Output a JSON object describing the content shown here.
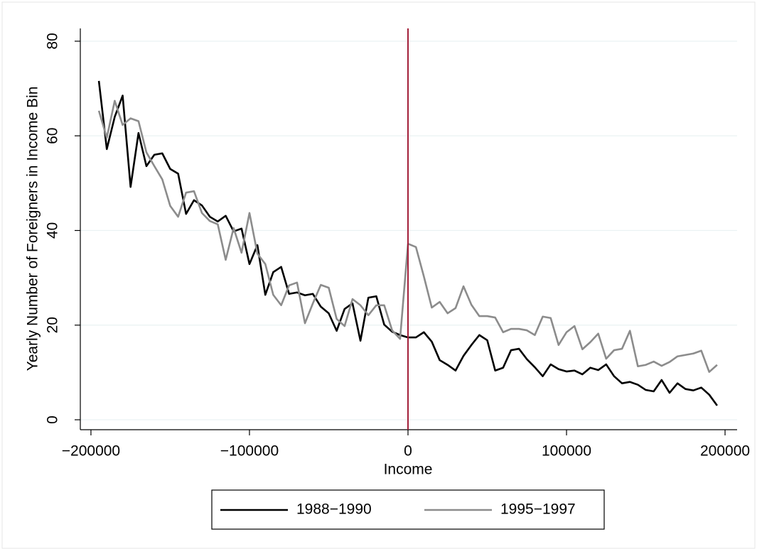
{
  "chart_data": {
    "type": "line",
    "xlabel": "Income",
    "ylabel": "Yearly Number of Foreigners in Income Bin",
    "x": [
      -195000,
      -190000,
      -185000,
      -180000,
      -175000,
      -170000,
      -165000,
      -160000,
      -155000,
      -150000,
      -145000,
      -140000,
      -135000,
      -130000,
      -125000,
      -120000,
      -115000,
      -110000,
      -105000,
      -100000,
      -95000,
      -90000,
      -85000,
      -80000,
      -75000,
      -70000,
      -65000,
      -60000,
      -55000,
      -50000,
      -45000,
      -40000,
      -35000,
      -30000,
      -25000,
      -20000,
      -15000,
      -10000,
      -5000,
      0,
      5000,
      10000,
      15000,
      20000,
      25000,
      30000,
      35000,
      40000,
      45000,
      50000,
      55000,
      60000,
      65000,
      70000,
      75000,
      80000,
      85000,
      90000,
      95000,
      100000,
      105000,
      110000,
      115000,
      120000,
      125000,
      130000,
      135000,
      140000,
      145000,
      150000,
      155000,
      160000,
      165000,
      170000,
      175000,
      180000,
      185000,
      190000,
      195000
    ],
    "series": [
      {
        "name": "1988−1990",
        "color": "#000000",
        "values": [
          71.6,
          57.2,
          64,
          68.5,
          49.2,
          60.6,
          53.6,
          56,
          56.3,
          53,
          52,
          43.5,
          46.4,
          45.3,
          42.9,
          41.9,
          43.1,
          39.8,
          40.4,
          32.9,
          36.9,
          26.4,
          31.2,
          32.3,
          26.6,
          26.9,
          26.3,
          26.6,
          23.9,
          22.5,
          18.8,
          23.4,
          24.6,
          16.7,
          25.8,
          26.1,
          20.1,
          18.6,
          17.9,
          17.4,
          17.4,
          18.5,
          16.5,
          12.6,
          11.6,
          10.4,
          13.5,
          15.8,
          17.9,
          16.8,
          10.4,
          11,
          14.7,
          15,
          12.8,
          11.1,
          9.2,
          11.7,
          10.7,
          10.2,
          10.4,
          9.6,
          11,
          10.5,
          11.7,
          9.2,
          7.7,
          8,
          7.4,
          6.3,
          6,
          8.4,
          5.7,
          7.7,
          6.5,
          6.2,
          6.8,
          5.3,
          3
        ]
      },
      {
        "name": "1995−1997",
        "color": "#8c8c8c",
        "values": [
          65.3,
          59.6,
          67.4,
          62.3,
          63.7,
          63.1,
          56.5,
          53.6,
          50.8,
          45.2,
          42.9,
          48,
          48.3,
          43.7,
          42,
          41.3,
          33.8,
          40.5,
          35.3,
          43.7,
          35.1,
          32.9,
          26.4,
          24.2,
          28.4,
          29,
          20.4,
          24.6,
          28.5,
          27.9,
          21.3,
          19.8,
          25.5,
          24.2,
          22.1,
          24.2,
          24.2,
          18.9,
          17.1,
          37.2,
          36.5,
          30.3,
          23.7,
          24.9,
          22.5,
          23.6,
          28.2,
          24.3,
          21.9,
          21.9,
          21.6,
          18.5,
          19.2,
          19.2,
          18.9,
          17.9,
          21.8,
          21.5,
          15.8,
          18.5,
          19.8,
          14.9,
          16.4,
          18.2,
          12.9,
          14.7,
          15,
          18.8,
          11.3,
          11.6,
          12.3,
          11.4,
          12.2,
          13.4,
          13.7,
          14,
          14.6,
          10.1,
          11.6
        ]
      }
    ],
    "xlim": [
      -206700,
      207600
    ],
    "ylim": [
      -2.1,
      82.7
    ],
    "xticks": [
      {
        "value": -200000,
        "label": "−200000"
      },
      {
        "value": -100000,
        "label": "−100000"
      },
      0,
      100000,
      200000
    ],
    "yticks": [
      0,
      20,
      40,
      60,
      80
    ],
    "grid": true,
    "xline": 0,
    "xline_color": "#a3203a",
    "legend": "bottom"
  }
}
